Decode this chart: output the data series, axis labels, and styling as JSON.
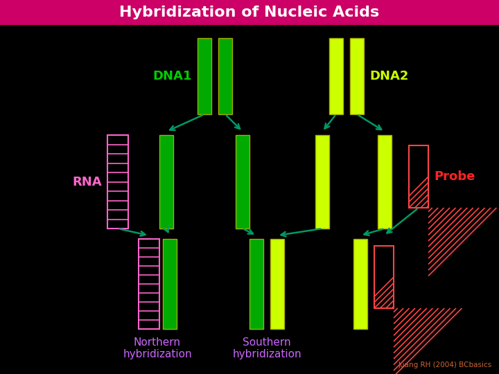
{
  "title": "Hybridization of Nucleic Acids",
  "title_bg": "#cc0066",
  "title_color": "#ffffff",
  "bg_color": "#000000",
  "dna1_label": "DNA1",
  "dna2_label": "DNA2",
  "rna_label": "RNA",
  "probe_label": "Probe",
  "northern_label": "Northern\nhybridization",
  "southern_label": "Southern\nhybridization",
  "credit": "Juang RH (2004) BCbasics",
  "dna1_color": "#00aa00",
  "dna1_label_color": "#00cc00",
  "dna2_color": "#ccff00",
  "dna2_label_color": "#ccff00",
  "rna_color": "#ff66cc",
  "rna_stripe_color": "#ffffff",
  "rna_label_color": "#ff66cc",
  "probe_color": "#ff4444",
  "probe_stripe_color": "#ffffff",
  "probe_label_color": "#ff2222",
  "arrow_color": "#009966",
  "northern_label_color": "#cc66ff",
  "southern_label_color": "#cc66ff",
  "credit_color": "#cc6633",
  "dna1_border": "#aaaa00",
  "dna2_border": "#aaaa00"
}
